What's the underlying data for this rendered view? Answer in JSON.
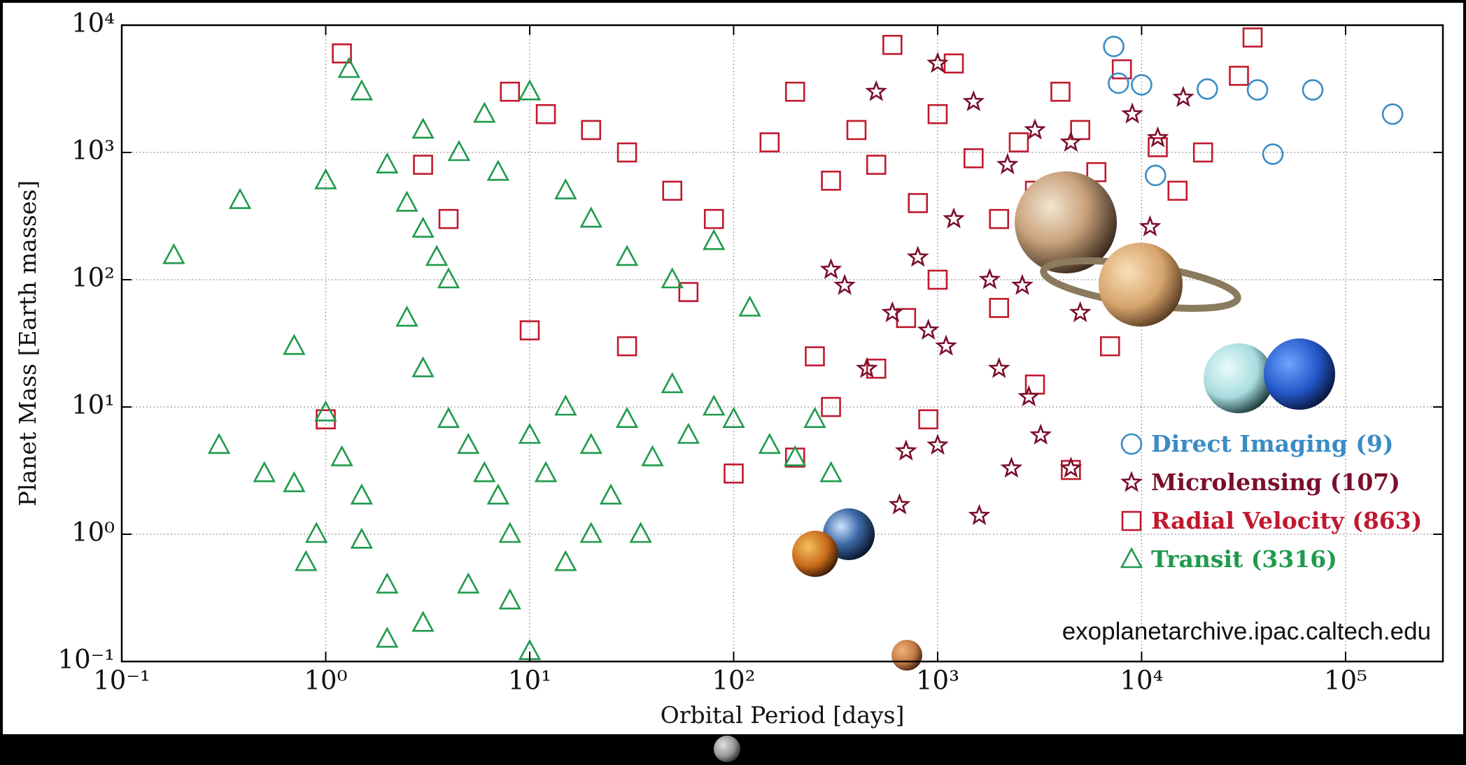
{
  "chart_data": {
    "type": "scatter",
    "xlabel": "Orbital Period [days]",
    "ylabel": "Planet Mass [Earth masses]",
    "annotation": "exoplanetarchive.ipac.caltech.edu",
    "xscale": "log",
    "yscale": "log",
    "grid": true,
    "legend": "lower right",
    "xlim": [
      0.1,
      300000
    ],
    "ylim": [
      0.1,
      10000
    ],
    "xticks": [
      {
        "value": 0.1,
        "label": "10⁻¹"
      },
      {
        "value": 1,
        "label": "10⁰"
      },
      {
        "value": 10,
        "label": "10¹"
      },
      {
        "value": 100,
        "label": "10²"
      },
      {
        "value": 1000,
        "label": "10³"
      },
      {
        "value": 10000,
        "label": "10⁴"
      },
      {
        "value": 100000,
        "label": "10⁵"
      }
    ],
    "yticks": [
      {
        "value": 0.1,
        "label": "10⁻¹"
      },
      {
        "value": 1,
        "label": "10⁰"
      },
      {
        "value": 10,
        "label": "10¹"
      },
      {
        "value": 100,
        "label": "10²"
      },
      {
        "value": 1000,
        "label": "10³"
      },
      {
        "value": 10000,
        "label": "10⁴"
      }
    ],
    "series": [
      {
        "name": "Direct Imaging (9)",
        "color": "#3a8cc4",
        "marker": "circle",
        "x": [
          7300,
          7700,
          10000,
          21000,
          37000,
          69000,
          170000,
          44000,
          11700
        ],
        "values": [
          6800,
          3500,
          3400,
          3150,
          3100,
          3100,
          2000,
          970,
          660
        ]
      },
      {
        "name": "Microlensing (107)",
        "color": "#7a0f2b",
        "marker": "star",
        "x": [
          500,
          1000,
          1500,
          2200,
          3000,
          4500,
          12000,
          9000,
          16000,
          11000,
          300,
          600,
          900,
          1100,
          2000,
          2800,
          3200,
          4500,
          2300,
          700,
          1000,
          650,
          1600,
          5000,
          1800,
          2600,
          350,
          450,
          800,
          1200
        ],
        "values": [
          3000,
          5000,
          2500,
          800,
          1500,
          1200,
          1300,
          2000,
          2700,
          260,
          120,
          55,
          40,
          30,
          20,
          12,
          6,
          3.3,
          3.3,
          4.5,
          5,
          1.7,
          1.4,
          55,
          100,
          90,
          90,
          20,
          150,
          300
        ]
      },
      {
        "name": "Radial Velocity (863)",
        "color": "#c0192e",
        "marker": "square",
        "x": [
          1.2,
          3,
          4,
          8,
          12,
          20,
          30,
          50,
          80,
          150,
          200,
          300,
          400,
          500,
          600,
          800,
          1000,
          1200,
          1500,
          2000,
          2500,
          3000,
          4000,
          5000,
          6000,
          8000,
          12000,
          20000,
          30000,
          35000,
          15000,
          1000,
          700,
          500,
          300,
          200,
          100,
          2000,
          3000,
          1.0,
          10,
          30,
          60,
          4500,
          250,
          7000,
          900
        ],
        "values": [
          6000,
          800,
          300,
          3000,
          2000,
          1500,
          1000,
          500,
          300,
          1200,
          3000,
          600,
          1500,
          800,
          7000,
          400,
          2000,
          5000,
          900,
          300,
          1200,
          500,
          3000,
          1500,
          700,
          4500,
          1100,
          1000,
          4000,
          8000,
          500,
          100,
          50,
          20,
          10,
          4,
          3,
          60,
          15,
          8,
          40,
          30,
          80,
          3.2,
          25,
          30,
          8
        ]
      },
      {
        "name": "Transit (3316)",
        "color": "#1f9a4b",
        "marker": "triangle",
        "x": [
          0.18,
          0.38,
          0.3,
          0.5,
          0.7,
          0.8,
          0.7,
          1.0,
          1.2,
          1.5,
          1.0,
          1.3,
          1.5,
          2,
          2.5,
          3,
          3.5,
          4,
          4.5,
          3,
          2.5,
          3,
          4,
          5,
          6,
          7,
          8,
          10,
          12,
          15,
          20,
          25,
          30,
          40,
          50,
          60,
          80,
          100,
          150,
          200,
          300,
          250,
          5,
          3,
          2,
          8,
          10,
          15,
          20,
          6,
          10,
          7,
          15,
          20,
          30,
          50,
          80,
          120,
          0.9,
          1.5,
          2,
          35
        ],
        "values": [
          155,
          420,
          5,
          3,
          2.5,
          0.6,
          30,
          9,
          4,
          2,
          600,
          4500,
          3000,
          800,
          400,
          250,
          150,
          100,
          1000,
          1500,
          50,
          20,
          8,
          5,
          3,
          2,
          1,
          6,
          3,
          10,
          5,
          2,
          8,
          4,
          15,
          6,
          10,
          8,
          5,
          4,
          3,
          8,
          0.4,
          0.2,
          0.15,
          0.3,
          0.12,
          0.6,
          1,
          2000,
          3000,
          700,
          500,
          300,
          150,
          100,
          200,
          60,
          1,
          0.9,
          0.4,
          1
        ]
      }
    ]
  }
}
